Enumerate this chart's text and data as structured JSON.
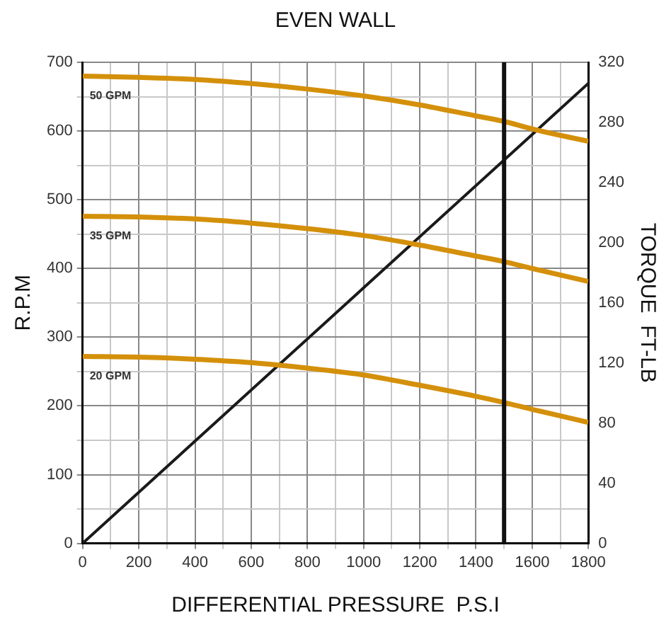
{
  "chart_data": {
    "type": "line",
    "title": "EVEN WALL",
    "xlabel": "DIFFERENTIAL PRESSURE  P.S.I",
    "ylabel": "R.P.M",
    "y2label": "TORQUE  FT-LB",
    "x": [
      0,
      200,
      400,
      600,
      800,
      1000,
      1200,
      1400,
      1500,
      1600,
      1800
    ],
    "series": [
      {
        "name": "50 GPM",
        "color": "#d4900a",
        "values": [
          680,
          678,
          675,
          669,
          661,
          651,
          638,
          622,
          614,
          603,
          585
        ]
      },
      {
        "name": "35 GPM",
        "color": "#d4900a",
        "values": [
          476,
          475,
          472,
          466,
          458,
          448,
          434,
          418,
          410,
          400,
          381
        ]
      },
      {
        "name": "20 GPM",
        "color": "#d4900a",
        "values": [
          272,
          271,
          268,
          263,
          255,
          245,
          230,
          214,
          205,
          195,
          176
        ]
      },
      {
        "color": "#1a1a1a",
        "axis": "y2",
        "x": [
          0,
          1800
        ],
        "values": [
          0,
          306
        ]
      }
    ],
    "xlim": [
      0,
      1800
    ],
    "xticks": [
      0,
      {
        "value": 100,
        "label": null
      },
      200,
      {
        "value": 300,
        "label": null
      },
      400,
      {
        "value": 500,
        "label": null
      },
      600,
      {
        "value": 700,
        "label": null
      },
      800,
      {
        "value": 900,
        "label": null
      },
      1000,
      {
        "value": 1100,
        "label": null
      },
      1200,
      {
        "value": 1300,
        "label": null
      },
      1400,
      {
        "value": 1500,
        "label": null
      },
      1600,
      {
        "value": 1700,
        "label": null
      },
      1800
    ],
    "ylim": [
      0,
      700
    ],
    "yticks": [
      0,
      {
        "value": 50,
        "label": null
      },
      100,
      {
        "value": 150,
        "label": null
      },
      200,
      {
        "value": 250,
        "label": null
      },
      300,
      {
        "value": 350,
        "label": null
      },
      400,
      {
        "value": 450,
        "label": null
      },
      500,
      {
        "value": 550,
        "label": null
      },
      600,
      {
        "value": 650,
        "label": null
      },
      700
    ],
    "y2lim": [
      0,
      320
    ],
    "y2ticks": [
      0,
      40,
      80,
      120,
      160,
      200,
      240,
      280,
      320
    ],
    "ref_lines": [
      {
        "axis": "x",
        "value": 1500,
        "color": "#111111"
      }
    ],
    "grid": true,
    "legend": false,
    "marker": "none",
    "line_style": "solid"
  }
}
